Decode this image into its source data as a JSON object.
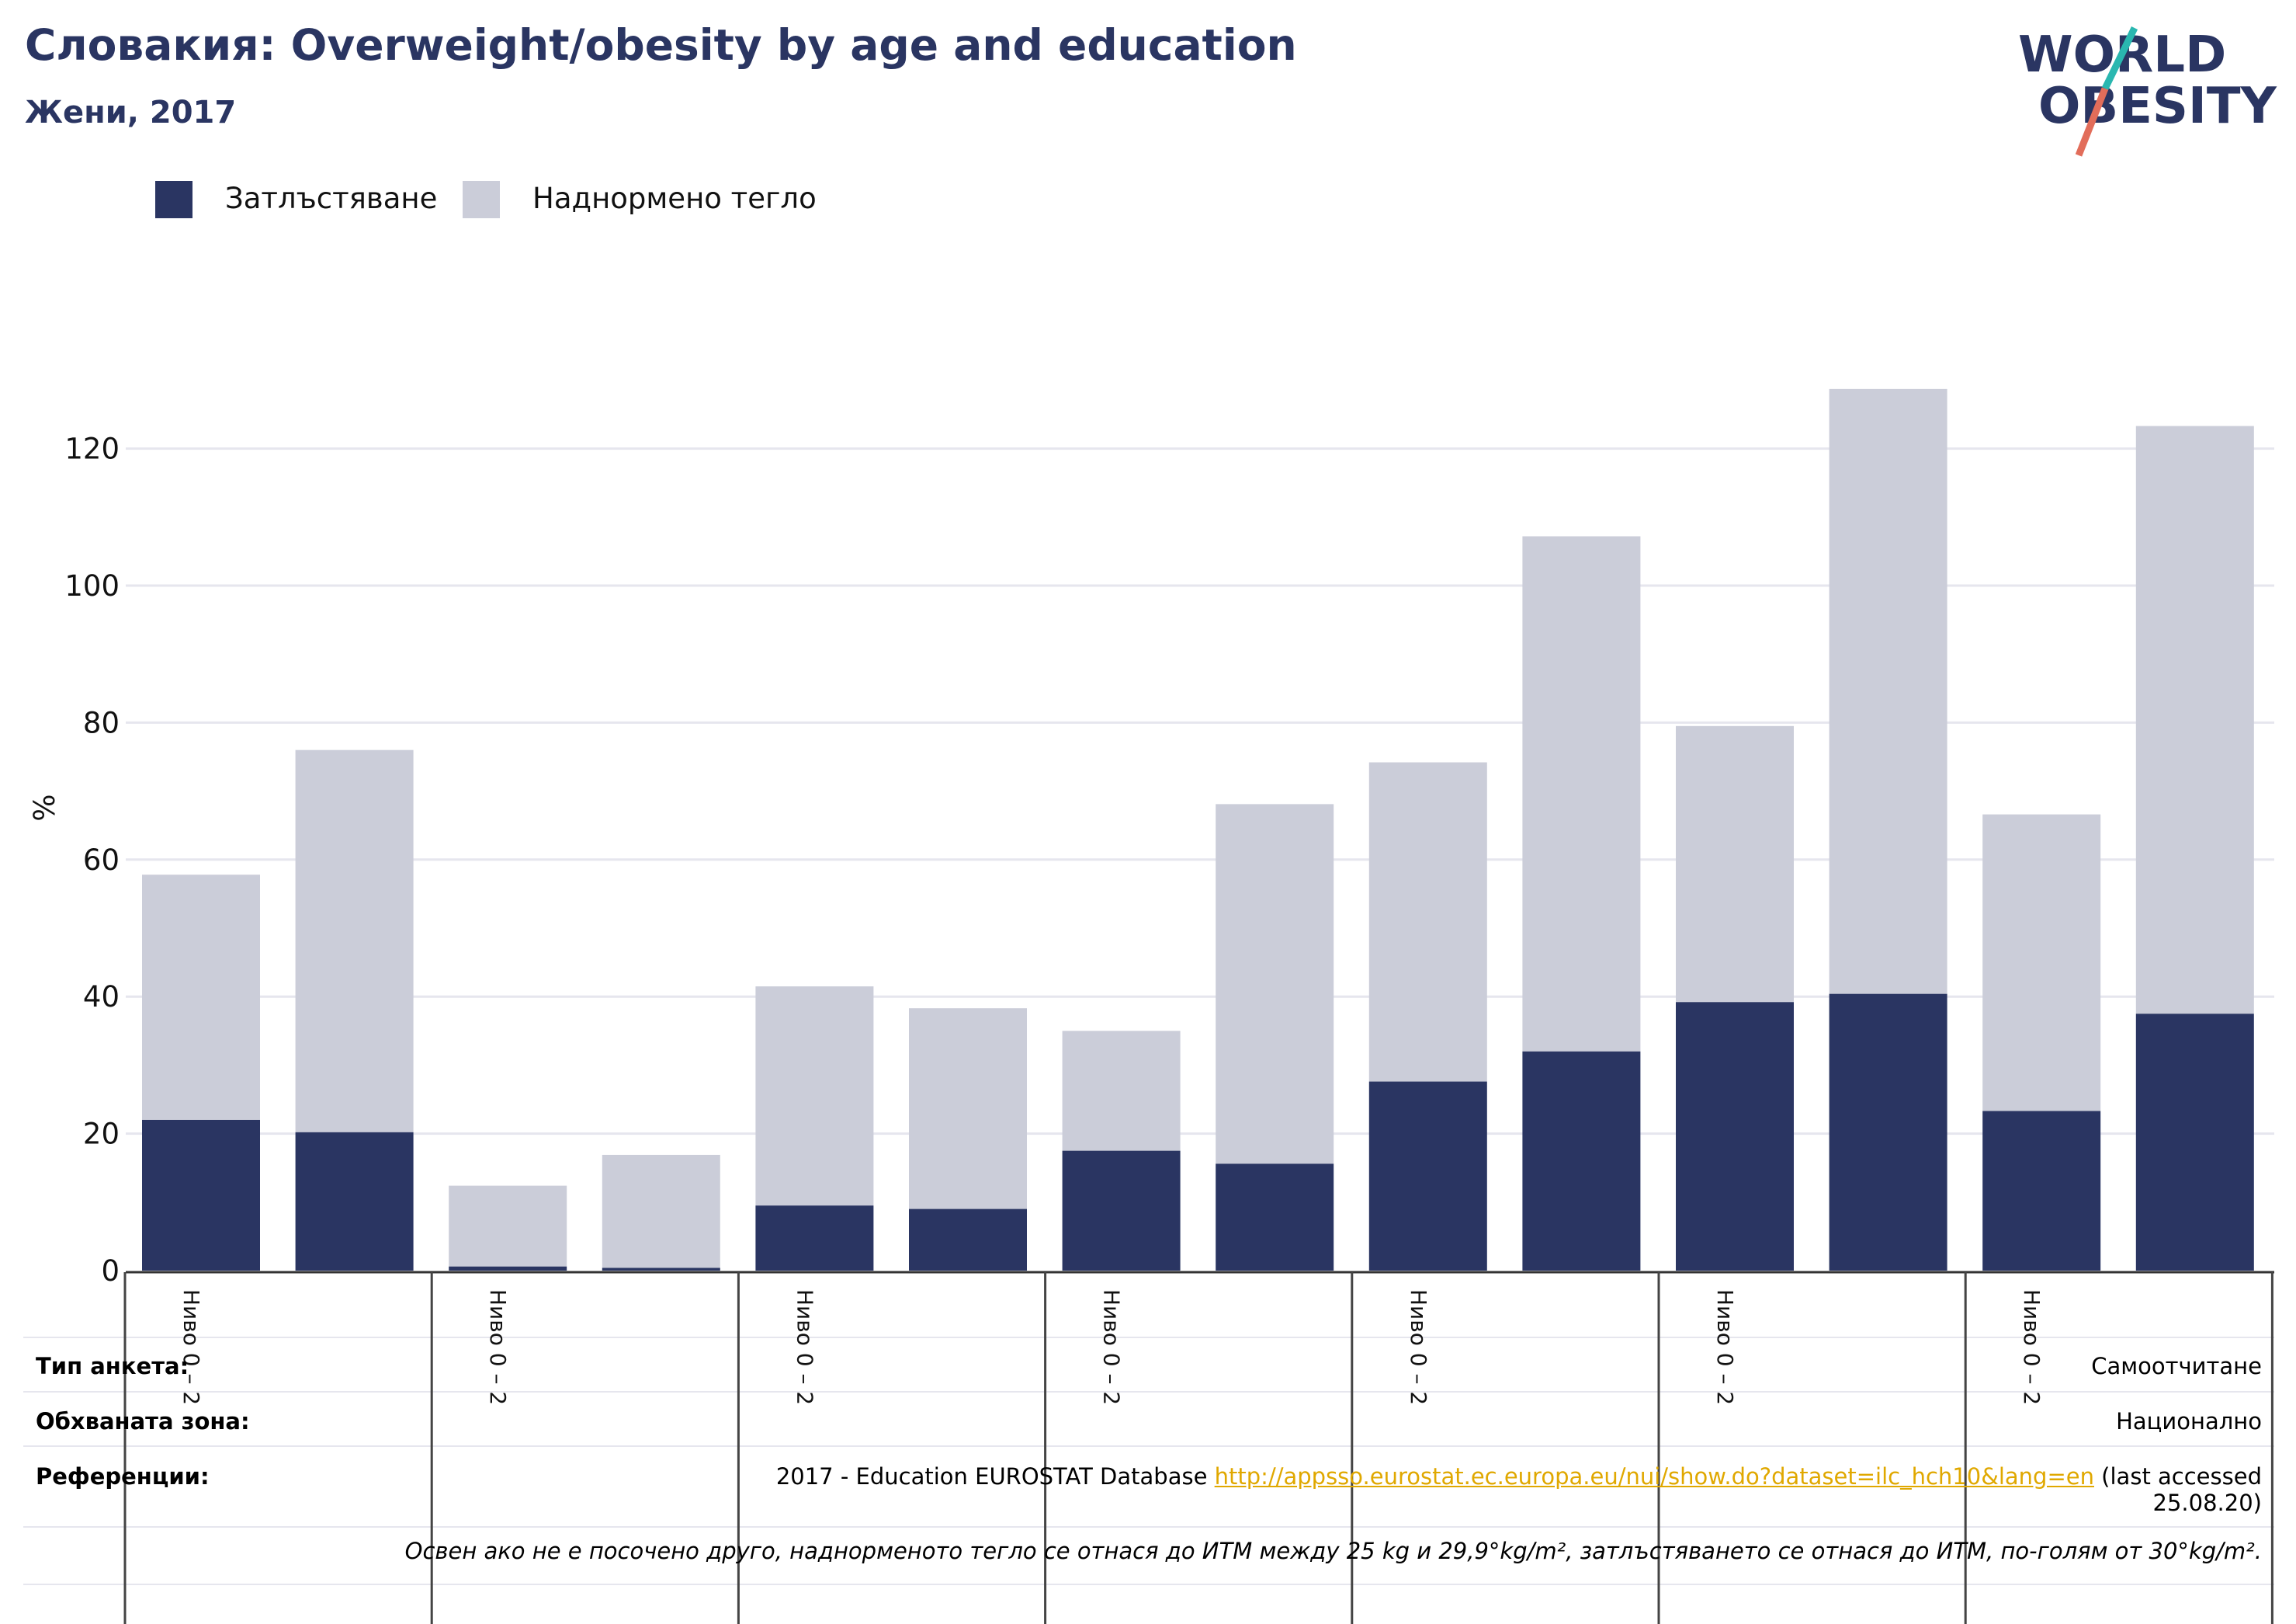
{
  "header": {
    "title": "Словакия: Overweight/obesity by age and education",
    "subtitle": "Жени, 2017"
  },
  "logo": {
    "line1": "WORLD",
    "line2": "OBESITY"
  },
  "colors": {
    "obesity": "#2a3562",
    "overweight": "#cbcdd9",
    "accent_teal": "#2ab7b0",
    "accent_coral": "#e26d5a",
    "link": "#e0a800"
  },
  "chart_data": {
    "type": "bar",
    "stacked": true,
    "ylabel": "%",
    "ylim": [
      0,
      130
    ],
    "yticks": [
      0,
      20,
      40,
      60,
      80,
      100,
      120
    ],
    "grid": true,
    "legend_position": "top-left",
    "group_labels": [
      "Ниво 0 – 2",
      "Ниво 0 – 2",
      "Ниво 0 – 2",
      "Ниво 0 – 2",
      "Ниво 0 – 2",
      "Ниво 0 – 2",
      "Ниво 0 – 2"
    ],
    "series": [
      {
        "name": "Затлъстяване",
        "color": "#2a3562",
        "values": [
          22.0,
          20.2,
          0.6,
          0.4,
          9.5,
          9.0,
          17.5,
          15.6,
          27.6,
          32.0,
          39.2,
          40.4,
          23.3,
          37.5
        ]
      },
      {
        "name": "Наднормено тегло",
        "color": "#cbcdd9",
        "values": [
          35.8,
          55.8,
          11.8,
          16.5,
          32.0,
          29.3,
          17.5,
          52.5,
          46.6,
          75.2,
          40.3,
          88.3,
          43.3,
          85.8
        ]
      }
    ]
  },
  "info": {
    "survey_type_label": "Тип анкета:",
    "survey_type_value": "Самоотчитане",
    "coverage_label": "Обхваната зона:",
    "coverage_value": "Национално",
    "references_label": "Референции:",
    "references_prefix": "2017 - Education EUROSTAT Database ",
    "references_link": "http://appsso.eurostat.ec.europa.eu/nui/show.do?dataset=ilc_hch10&lang=en",
    "references_suffix": " (last accessed",
    "references_date": "25.08.20)",
    "note": "Освен ако не е посочено друго, наднорменото тегло се отнася до ИТМ между 25 kg и 29,9°kg/m², затлъстяването се отнася до ИТМ, по-голям от 30°kg/m²."
  }
}
